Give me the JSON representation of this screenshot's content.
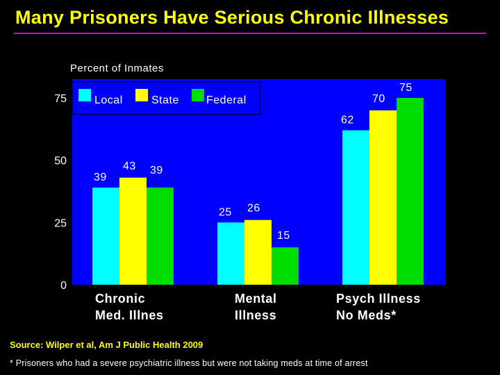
{
  "title": "Many Prisoners Have Serious Chronic Illnesses",
  "source": "Source: Wilper et al, Am J Public Health 2009",
  "footnote": "* Prisoners who had a severe psychiatric illness but were not taking meds at time of arrest",
  "colors": {
    "background": "#000000",
    "plot_area": "#0000ff",
    "title": "#ffff00",
    "rule": "#cc00cc",
    "local": "#00ffff",
    "state": "#ffff00",
    "federal": "#00dd00"
  },
  "chart_data": {
    "type": "bar",
    "ylabel": "Percent of Inmates",
    "ylim": [
      0,
      75
    ],
    "yticks": [
      "0",
      "25",
      "50",
      "75"
    ],
    "categories": [
      [
        "Chronic",
        "Med. Illnes"
      ],
      [
        "Mental",
        "Illness"
      ],
      [
        "Psych Illness",
        "No Meds*"
      ]
    ],
    "series": [
      {
        "name": "Local",
        "values": [
          39,
          25,
          62
        ]
      },
      {
        "name": "State",
        "values": [
          43,
          26,
          70
        ]
      },
      {
        "name": "Federal",
        "values": [
          39,
          15,
          75
        ]
      }
    ],
    "data_labels": [
      [
        "39",
        "25",
        "62"
      ],
      [
        "43",
        "26",
        "70"
      ],
      [
        "39",
        "15",
        "75"
      ]
    ],
    "legend_position": "top-left",
    "grid": false
  }
}
